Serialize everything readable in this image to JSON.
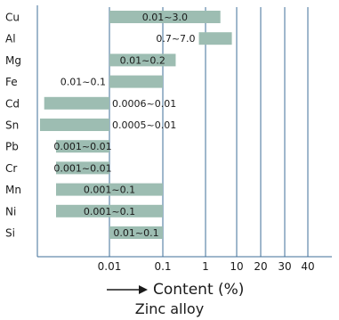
{
  "chart_data": {
    "type": "bar",
    "orientation": "horizontal",
    "title": "Zinc alloy",
    "xlabel": "Content (%)",
    "ylabel": "",
    "x_scale": "log",
    "x_ticks": [
      "0.01",
      "0.1",
      "1",
      "10",
      "20",
      "30",
      "40"
    ],
    "categories": [
      "Cu",
      "Al",
      "Mg",
      "Fe",
      "Cd",
      "Sn",
      "Pb",
      "Cr",
      "Mn",
      "Ni",
      "Si"
    ],
    "ranges": [
      {
        "element": "Cu",
        "min": 0.01,
        "max": 3.0,
        "label": "0.01~3.0"
      },
      {
        "element": "Al",
        "min": 0.7,
        "max": 7.0,
        "label": "0.7~7.0"
      },
      {
        "element": "Mg",
        "min": 0.01,
        "max": 0.2,
        "label": "0.01~0.2"
      },
      {
        "element": "Fe",
        "min": 0.01,
        "max": 0.1,
        "label": "0.01~0.1"
      },
      {
        "element": "Cd",
        "min": 0.0006,
        "max": 0.01,
        "label": "0.0006~0.01"
      },
      {
        "element": "Sn",
        "min": 0.0005,
        "max": 0.01,
        "label": "0.0005~0.01"
      },
      {
        "element": "Pb",
        "min": 0.001,
        "max": 0.01,
        "label": "0.001~0.01"
      },
      {
        "element": "Cr",
        "min": 0.001,
        "max": 0.01,
        "label": "0.001~0.01"
      },
      {
        "element": "Mn",
        "min": 0.001,
        "max": 0.1,
        "label": "0.001~0.1"
      },
      {
        "element": "Ni",
        "min": 0.001,
        "max": 0.1,
        "label": "0.001~0.1"
      },
      {
        "element": "Si",
        "min": 0.01,
        "max": 0.1,
        "label": "0.01~0.1"
      }
    ],
    "grid": true,
    "legend": "none",
    "colors": {
      "bar": "#9dbdb2",
      "grid": "#3f6f99",
      "axis": "#3f6f99",
      "text": "#1a1a1a"
    }
  }
}
